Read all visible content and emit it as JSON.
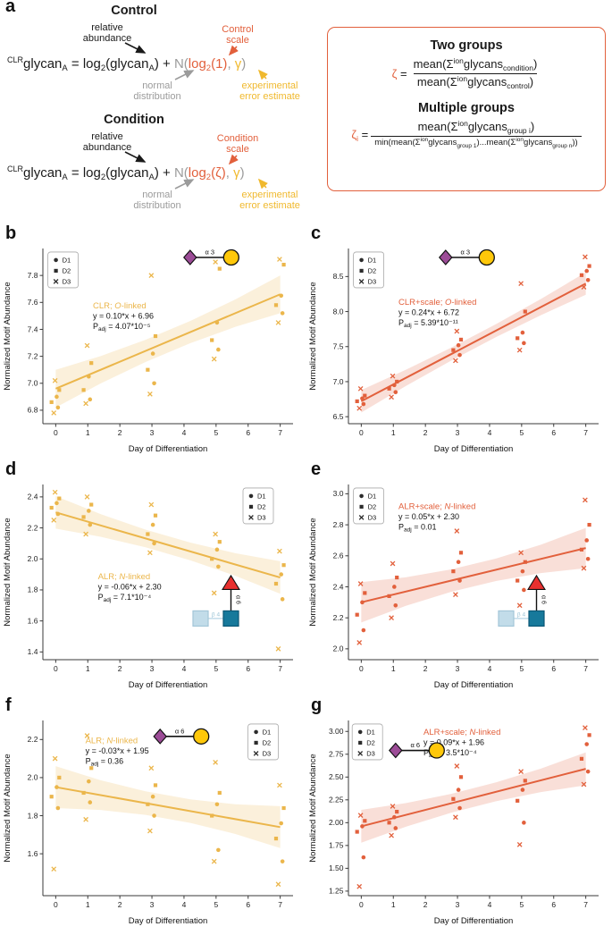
{
  "colors": {
    "accent_orange": "#E2603C",
    "accent_yellow": "#F0B92E",
    "accent_gray": "#9B9B9B",
    "chart_yellow": "#EBB64B",
    "chart_orange": "#E2603C",
    "snfg_purple": "#9C4C97",
    "snfg_yellow": "#FFC80A",
    "snfg_blue": "#17799B",
    "snfg_blue_pale": "#C2DCE9",
    "snfg_red": "#E8302F"
  },
  "panel_a": {
    "label": "a",
    "control": {
      "title": "Control",
      "ann_rel": [
        "relative",
        "abundance"
      ],
      "ann_scale": [
        "Control",
        "scale"
      ],
      "ann_normal": [
        "normal",
        "distribution"
      ],
      "ann_error": [
        "experimental",
        "error estimate"
      ],
      "formula": [
        {
          "t": "CLR",
          "c": "sup"
        },
        {
          "t": "glycan"
        },
        {
          "t": "A",
          "c": "sub"
        },
        {
          "t": " = log"
        },
        {
          "t": "2",
          "c": "sub"
        },
        {
          "t": "(glycan"
        },
        {
          "t": "A",
          "c": "sub"
        },
        {
          "t": ") + "
        },
        {
          "t": "N(",
          "c": "gray"
        },
        {
          "t": "log",
          "c": "red"
        },
        {
          "t": "2",
          "c": "sub red"
        },
        {
          "t": "(1)",
          "c": "red"
        },
        {
          "t": ", ",
          "c": "gray"
        },
        {
          "t": "γ",
          "c": "yellow"
        },
        {
          "t": ")",
          "c": "gray"
        }
      ]
    },
    "condition": {
      "title": "Condition",
      "ann_rel": [
        "relative",
        "abundance"
      ],
      "ann_scale": [
        "Condition",
        "scale"
      ],
      "ann_normal": [
        "normal",
        "distribution"
      ],
      "ann_error": [
        "experimental",
        "error estimate"
      ],
      "formula": [
        {
          "t": "CLR",
          "c": "sup"
        },
        {
          "t": "glycan"
        },
        {
          "t": "A",
          "c": "sub"
        },
        {
          "t": " = log"
        },
        {
          "t": "2",
          "c": "sub"
        },
        {
          "t": "(glycan"
        },
        {
          "t": "A",
          "c": "sub"
        },
        {
          "t": ") + "
        },
        {
          "t": "N(",
          "c": "gray"
        },
        {
          "t": "log",
          "c": "red"
        },
        {
          "t": "2",
          "c": "sub red"
        },
        {
          "t": "(",
          "c": "red"
        },
        {
          "t": "ζ",
          "c": "red"
        },
        {
          "t": ")",
          "c": "red"
        },
        {
          "t": ", ",
          "c": "gray"
        },
        {
          "t": "γ",
          "c": "yellow"
        },
        {
          "t": ")",
          "c": "gray"
        }
      ]
    },
    "box": {
      "two_title": "Two groups",
      "two_lhs": [
        {
          "t": "ζ",
          "c": "red"
        },
        {
          "t": " = "
        }
      ],
      "two_num": [
        {
          "t": "mean("
        },
        {
          "t": "Σ"
        },
        {
          "t": "ion",
          "c": "sup"
        },
        {
          "t": "glycans"
        },
        {
          "t": "condition",
          "c": "sub"
        },
        {
          "t": ")"
        }
      ],
      "two_den": [
        {
          "t": "mean("
        },
        {
          "t": "Σ"
        },
        {
          "t": "ion",
          "c": "sup"
        },
        {
          "t": "glycans"
        },
        {
          "t": "control",
          "c": "sub"
        },
        {
          "t": ")"
        }
      ],
      "multi_title": "Multiple groups",
      "multi_lhs": [
        {
          "t": "ζ",
          "c": "red"
        },
        {
          "t": "i",
          "c": "sub red"
        },
        {
          "t": " = "
        }
      ],
      "multi_num": [
        {
          "t": "mean("
        },
        {
          "t": "Σ"
        },
        {
          "t": "ion",
          "c": "sup"
        },
        {
          "t": "glycans"
        },
        {
          "t": "group i",
          "c": "sub"
        },
        {
          "t": ")"
        }
      ],
      "multi_den": [
        {
          "t": "min("
        },
        {
          "t": "mean("
        },
        {
          "t": "Σ"
        },
        {
          "t": "ion",
          "c": "sup"
        },
        {
          "t": "glycans"
        },
        {
          "t": "group 1",
          "c": "sub"
        },
        {
          "t": ")"
        },
        {
          "t": "..."
        },
        {
          "t": "mean("
        },
        {
          "t": "Σ"
        },
        {
          "t": "ion",
          "c": "sup"
        },
        {
          "t": "glycans"
        },
        {
          "t": "group n",
          "c": "sub"
        },
        {
          "t": "))"
        }
      ]
    }
  },
  "chart_data": [
    {
      "panel_label": "b",
      "type": "scatter",
      "color": "#EBB64B",
      "annotation": {
        "pre": "CLR; ",
        "it": "O",
        "post": "-linked",
        "eq": "y = 0.10*x + 6.96",
        "p_prefix": "P",
        "p_sub": "adj",
        "p_value": "4.07*10⁻⁵",
        "pos": [
          0.2,
          0.3
        ]
      },
      "fit": {
        "slope": 0.1,
        "intercept": 6.96
      },
      "band": [
        0.08,
        0.06
      ],
      "xlabel": "Day of Differentiation",
      "ylabel": "Normalized Motif Abundance",
      "xlim": [
        -0.4,
        7.4
      ],
      "ylim": [
        6.7,
        8.0
      ],
      "xticks": [
        "0",
        "1",
        "2",
        "3",
        "4",
        "5",
        "6",
        "7"
      ],
      "ytick_vals": [
        6.8,
        7.0,
        7.2,
        7.4,
        7.6,
        7.8
      ],
      "ytick_labels": [
        "6.8",
        "7.0",
        "7.2",
        "7.4",
        "7.6",
        "7.8"
      ],
      "legend": {
        "items": [
          "D1",
          "D2",
          "D3"
        ],
        "markers": [
          "circle",
          "square",
          "x"
        ],
        "pos": [
          0.02,
          0.02
        ]
      },
      "icon": {
        "type": "sialyl",
        "link": "α 3",
        "pos": [
          0.56,
          0.0
        ]
      },
      "days": [
        0,
        1,
        3,
        5,
        7
      ],
      "values": [
        [
          6.78,
          6.82,
          6.86,
          6.9,
          6.95,
          7.02
        ],
        [
          6.85,
          6.88,
          6.95,
          7.05,
          7.15,
          7.28
        ],
        [
          6.92,
          7.0,
          7.1,
          7.22,
          7.35,
          7.8
        ],
        [
          7.18,
          7.25,
          7.32,
          7.45,
          7.85,
          7.9
        ],
        [
          7.45,
          7.52,
          7.58,
          7.65,
          7.88,
          7.92
        ]
      ]
    },
    {
      "panel_label": "c",
      "type": "scatter",
      "color": "#E2603C",
      "annotation": {
        "pre": "CLR+scale; ",
        "it": "O",
        "post": "-linked",
        "eq": "y = 0.24*x + 6.72",
        "p_prefix": "P",
        "p_sub": "adj",
        "p_value": "5.39*10⁻¹¹",
        "pos": [
          0.2,
          0.28
        ]
      },
      "fit": {
        "slope": 0.24,
        "intercept": 6.72
      },
      "band": [
        0.09,
        0.07
      ],
      "xlabel": "Day of Differentiation",
      "ylabel": "Normalized Motif Abundance",
      "xlim": [
        -0.4,
        7.4
      ],
      "ylim": [
        6.4,
        8.9
      ],
      "xticks": [
        "0",
        "1",
        "2",
        "3",
        "4",
        "5",
        "6",
        "7"
      ],
      "ytick_vals": [
        6.5,
        7.0,
        7.5,
        8.0,
        8.5
      ],
      "ytick_labels": [
        "6.5",
        "7.0",
        "7.5",
        "8.0",
        "8.5"
      ],
      "legend": {
        "items": [
          "D1",
          "D2",
          "D3"
        ],
        "markers": [
          "circle",
          "square",
          "x"
        ],
        "pos": [
          0.02,
          0.02
        ]
      },
      "icon": {
        "type": "sialyl",
        "link": "α 3",
        "pos": [
          0.36,
          0.0
        ]
      },
      "days": [
        0,
        1,
        3,
        5,
        7
      ],
      "values": [
        [
          6.62,
          6.68,
          6.72,
          6.76,
          6.8,
          6.9
        ],
        [
          6.78,
          6.85,
          6.9,
          6.95,
          7.0,
          7.08
        ],
        [
          7.3,
          7.38,
          7.45,
          7.52,
          7.6,
          7.72
        ],
        [
          7.45,
          7.55,
          7.62,
          7.7,
          8.0,
          8.4
        ],
        [
          8.35,
          8.45,
          8.52,
          8.58,
          8.65,
          8.78
        ]
      ]
    },
    {
      "panel_label": "d",
      "type": "scatter",
      "color": "#EBB64B",
      "annotation": {
        "pre": "ALR; ",
        "it": "N",
        "post": "-linked",
        "eq": "y = -0.06*x + 2.30",
        "p_prefix": "P",
        "p_sub": "adj",
        "p_value": "7.1*10⁻⁴",
        "pos": [
          0.22,
          0.5
        ]
      },
      "fit": {
        "slope": -0.06,
        "intercept": 2.3
      },
      "band": [
        0.055,
        0.05
      ],
      "xlabel": "Day of Differentiation",
      "ylabel": "Normalized Motif Abundance",
      "xlim": [
        -0.4,
        7.4
      ],
      "ylim": [
        1.35,
        2.48
      ],
      "xticks": [
        "0",
        "1",
        "2",
        "3",
        "4",
        "5",
        "6",
        "7"
      ],
      "ytick_vals": [
        1.4,
        1.6,
        1.8,
        2.0,
        2.2,
        2.4
      ],
      "ytick_labels": [
        "1.4",
        "1.6",
        "1.8",
        "2.0",
        "2.2",
        "2.4"
      ],
      "legend": {
        "items": [
          "D1",
          "D2",
          "D3"
        ],
        "markers": [
          "circle",
          "square",
          "x"
        ],
        "pos": [
          0.8,
          0.02
        ]
      },
      "icon": {
        "type": "fucose",
        "link_top": "α 6",
        "link_left": "β 4",
        "pos": [
          0.6,
          0.52
        ]
      },
      "days": [
        0,
        1,
        3,
        5,
        7
      ],
      "values": [
        [
          2.25,
          2.29,
          2.33,
          2.36,
          2.39,
          2.43
        ],
        [
          2.16,
          2.22,
          2.27,
          2.31,
          2.35,
          2.4
        ],
        [
          2.04,
          2.1,
          2.16,
          2.22,
          2.28,
          2.35
        ],
        [
          1.78,
          1.95,
          2.0,
          2.06,
          2.11,
          2.16
        ],
        [
          1.42,
          1.74,
          1.84,
          1.9,
          1.96,
          2.05
        ]
      ]
    },
    {
      "panel_label": "e",
      "type": "scatter",
      "color": "#E2603C",
      "annotation": {
        "pre": "ALR+scale; ",
        "it": "N",
        "post": "-linked",
        "eq": "y = 0.05*x + 2.30",
        "p_prefix": "P",
        "p_sub": "adj",
        "p_value": "0.01",
        "pos": [
          0.2,
          0.1
        ]
      },
      "fit": {
        "slope": 0.05,
        "intercept": 2.3
      },
      "band": [
        0.07,
        0.06
      ],
      "xlabel": "Day of Differentiation",
      "ylabel": "Normalized Motif Abundance",
      "xlim": [
        -0.4,
        7.4
      ],
      "ylim": [
        1.93,
        3.06
      ],
      "xticks": [
        "0",
        "1",
        "2",
        "3",
        "4",
        "5",
        "6",
        "7"
      ],
      "ytick_vals": [
        2.0,
        2.2,
        2.4,
        2.6,
        2.8,
        3.0
      ],
      "ytick_labels": [
        "2.0",
        "2.2",
        "2.4",
        "2.6",
        "2.8",
        "3.0"
      ],
      "legend": {
        "items": [
          "D1",
          "D2",
          "D3"
        ],
        "markers": [
          "circle",
          "square",
          "x"
        ],
        "pos": [
          0.02,
          0.02
        ]
      },
      "icon": {
        "type": "fucose",
        "link_top": "α 6",
        "link_left": "β 4",
        "pos": [
          0.6,
          0.52
        ]
      },
      "days": [
        0,
        1,
        3,
        5,
        7
      ],
      "values": [
        [
          2.04,
          2.12,
          2.22,
          2.3,
          2.36,
          2.42
        ],
        [
          2.2,
          2.28,
          2.34,
          2.4,
          2.46,
          2.55
        ],
        [
          2.35,
          2.44,
          2.5,
          2.56,
          2.62,
          2.76
        ],
        [
          2.28,
          2.38,
          2.44,
          2.5,
          2.56,
          2.62
        ],
        [
          2.52,
          2.58,
          2.64,
          2.7,
          2.8,
          2.96
        ]
      ]
    },
    {
      "panel_label": "f",
      "type": "scatter",
      "color": "#EBB64B",
      "annotation": {
        "pre": "ALR; ",
        "it": "N",
        "post": "-linked",
        "eq": "y = -0.03*x + 1.95",
        "p_prefix": "P",
        "p_sub": "adj",
        "p_value": "0.36",
        "pos": [
          0.17,
          0.09
        ]
      },
      "fit": {
        "slope": -0.03,
        "intercept": 1.95
      },
      "band": [
        0.06,
        0.05
      ],
      "xlabel": "Day of Differentiation",
      "ylabel": "Normalized Motif Abundance",
      "xlim": [
        -0.4,
        7.4
      ],
      "ylim": [
        1.38,
        2.3
      ],
      "xticks": [
        "0",
        "1",
        "2",
        "3",
        "4",
        "5",
        "6",
        "7"
      ],
      "ytick_vals": [
        1.6,
        1.8,
        2.0,
        2.2
      ],
      "ytick_labels": [
        "1.6",
        "1.8",
        "2.0",
        "2.2"
      ],
      "legend": {
        "items": [
          "D1",
          "D2",
          "D3"
        ],
        "markers": [
          "circle",
          "square",
          "x"
        ],
        "pos": [
          0.82,
          0.02
        ]
      },
      "icon": {
        "type": "sialyl",
        "link": "α 6",
        "pos": [
          0.44,
          0.04
        ]
      },
      "days": [
        0,
        1,
        3,
        5,
        7
      ],
      "values": [
        [
          1.52,
          1.84,
          1.9,
          1.95,
          2.0,
          2.1
        ],
        [
          1.78,
          1.87,
          1.92,
          1.98,
          2.05,
          2.22
        ],
        [
          1.72,
          1.8,
          1.86,
          1.9,
          1.96,
          2.05
        ],
        [
          1.56,
          1.62,
          1.8,
          1.86,
          1.92,
          2.08
        ],
        [
          1.44,
          1.56,
          1.68,
          1.76,
          1.84,
          1.96
        ]
      ]
    },
    {
      "panel_label": "g",
      "type": "scatter",
      "color": "#E2603C",
      "annotation": {
        "pre": "ALR+scale; ",
        "it": "N",
        "post": "-linked",
        "eq": "y = 0.09*x + 1.96",
        "p_prefix": "P",
        "p_sub": "adj",
        "p_value": "3.5*10⁻⁴",
        "pos": [
          0.3,
          0.04
        ]
      },
      "fit": {
        "slope": 0.09,
        "intercept": 1.96
      },
      "band": [
        0.1,
        0.08
      ],
      "xlabel": "Day of Differentiation",
      "ylabel": "Normalized Motif Abundance",
      "xlim": [
        -0.4,
        7.4
      ],
      "ylim": [
        1.2,
        3.12
      ],
      "xticks": [
        "0",
        "1",
        "2",
        "3",
        "4",
        "5",
        "6",
        "7"
      ],
      "ytick_vals": [
        1.25,
        1.5,
        1.75,
        2.0,
        2.25,
        2.5,
        2.75,
        3.0
      ],
      "ytick_labels": [
        "1.25",
        "1.50",
        "1.75",
        "2.00",
        "2.25",
        "2.50",
        "2.75",
        "3.00"
      ],
      "legend": {
        "items": [
          "D1",
          "D2",
          "D3"
        ],
        "markers": [
          "circle",
          "square",
          "x"
        ],
        "pos": [
          0.015,
          0.02
        ]
      },
      "icon": {
        "type": "sialyl",
        "link": "α 6",
        "pos": [
          0.16,
          0.12
        ]
      },
      "days": [
        0,
        1,
        3,
        5,
        7
      ],
      "values": [
        [
          1.3,
          1.62,
          1.9,
          1.96,
          2.02,
          2.08
        ],
        [
          1.86,
          1.94,
          2.0,
          2.06,
          2.12,
          2.18
        ],
        [
          2.06,
          2.16,
          2.26,
          2.36,
          2.5,
          2.62
        ],
        [
          1.76,
          2.0,
          2.24,
          2.36,
          2.46,
          2.56
        ],
        [
          2.42,
          2.56,
          2.7,
          2.86,
          2.96,
          3.04
        ]
      ]
    }
  ]
}
